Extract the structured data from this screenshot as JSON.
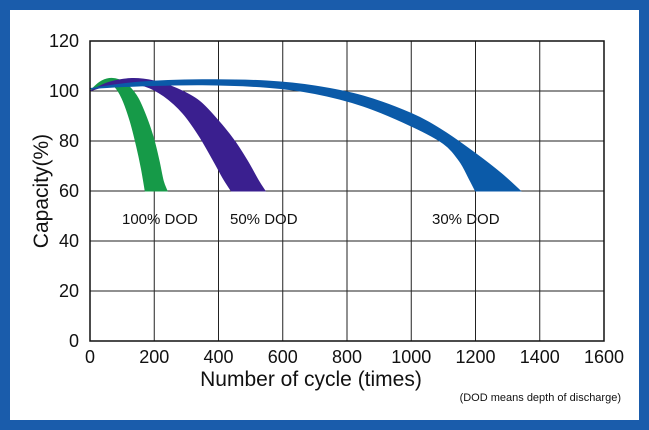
{
  "chart_data": {
    "type": "area",
    "xlabel": "Number of cycle (times)",
    "ylabel": "Capacity(%)",
    "xlim": [
      0,
      1600
    ],
    "ylim": [
      0,
      120
    ],
    "x_ticks": [
      "0",
      "200",
      "400",
      "600",
      "800",
      "1000",
      "1200",
      "1400",
      "1600"
    ],
    "y_ticks": [
      "0",
      "20",
      "40",
      "60",
      "80",
      "100",
      "120"
    ],
    "grid": true,
    "note": "(DOD means depth of discharge)",
    "colors": {
      "frame": "#1a5cab",
      "grid": "#222222",
      "series_100": "#169a48",
      "series_50": "#3a1f8f",
      "series_30": "#0b5aa8"
    },
    "series": [
      {
        "name": "100% DOD",
        "color": "#169a48",
        "upper": [
          [
            0,
            100
          ],
          [
            30,
            103.5
          ],
          [
            60,
            105
          ],
          [
            90,
            104.5
          ],
          [
            120,
            102
          ],
          [
            150,
            97
          ],
          [
            180,
            88
          ],
          [
            200,
            80
          ],
          [
            215,
            72
          ],
          [
            228,
            64
          ],
          [
            240,
            60
          ]
        ],
        "lower": [
          [
            0,
            100
          ],
          [
            25,
            102
          ],
          [
            50,
            103
          ],
          [
            75,
            102
          ],
          [
            100,
            97
          ],
          [
            125,
            88
          ],
          [
            145,
            78
          ],
          [
            160,
            69
          ],
          [
            172,
            60
          ]
        ]
      },
      {
        "name": "50% DOD",
        "color": "#3a1f8f",
        "upper": [
          [
            0,
            100
          ],
          [
            60,
            103.5
          ],
          [
            130,
            105
          ],
          [
            200,
            104
          ],
          [
            270,
            101
          ],
          [
            340,
            96
          ],
          [
            400,
            88
          ],
          [
            450,
            80
          ],
          [
            490,
            72
          ],
          [
            525,
            64
          ],
          [
            545,
            60
          ]
        ],
        "lower": [
          [
            0,
            100
          ],
          [
            50,
            102
          ],
          [
            110,
            103
          ],
          [
            170,
            102
          ],
          [
            230,
            98
          ],
          [
            290,
            91
          ],
          [
            340,
            82
          ],
          [
            385,
            72
          ],
          [
            415,
            65
          ],
          [
            440,
            60
          ]
        ]
      },
      {
        "name": "30% DOD",
        "color": "#0b5aa8",
        "upper": [
          [
            0,
            101
          ],
          [
            150,
            103.5
          ],
          [
            350,
            104.5
          ],
          [
            550,
            104
          ],
          [
            700,
            102
          ],
          [
            850,
            98
          ],
          [
            1000,
            91
          ],
          [
            1100,
            84
          ],
          [
            1200,
            75
          ],
          [
            1280,
            67
          ],
          [
            1340,
            60
          ]
        ],
        "lower": [
          [
            0,
            101
          ],
          [
            150,
            102
          ],
          [
            350,
            102.5
          ],
          [
            550,
            101.5
          ],
          [
            700,
            99
          ],
          [
            850,
            94
          ],
          [
            1000,
            86
          ],
          [
            1100,
            79
          ],
          [
            1150,
            72
          ],
          [
            1180,
            65
          ],
          [
            1200,
            60
          ]
        ]
      }
    ]
  }
}
